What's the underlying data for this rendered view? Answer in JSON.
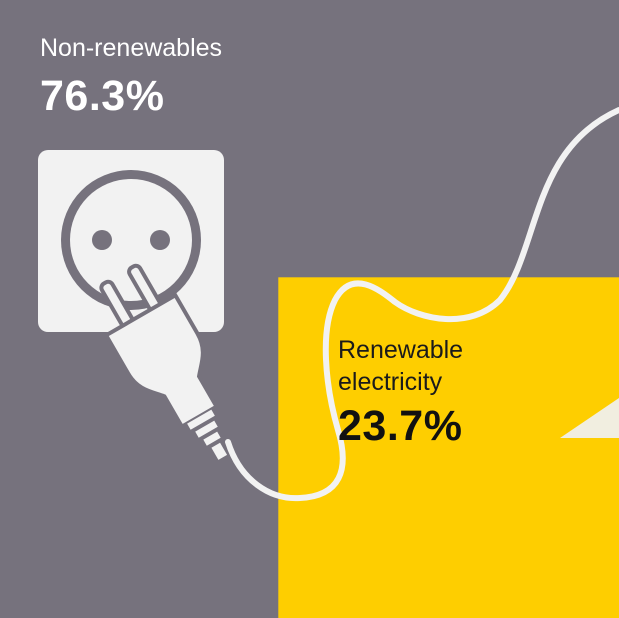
{
  "colors": {
    "background": "#76727d",
    "non_renewable": "#76727d",
    "renewable": "#fece00",
    "icon": "#f2f2f2",
    "light_text": "#ffffff",
    "dark_text": "#111111"
  },
  "icons": [
    "wall-socket-icon",
    "electric-plug-icon"
  ],
  "chart_data": {
    "type": "area",
    "categories": [
      "Non-renewables",
      "Renewable electricity"
    ],
    "values": [
      76.3,
      23.7
    ],
    "unit": "%",
    "labels": {
      "non_renewable": {
        "name": "Non-renewables",
        "value": "76.3%"
      },
      "renewable": {
        "name": "Renewable electricity",
        "value": "23.7%"
      }
    }
  }
}
